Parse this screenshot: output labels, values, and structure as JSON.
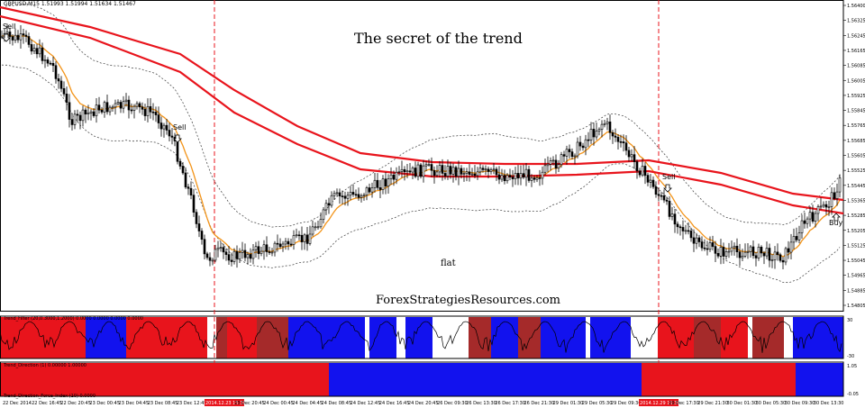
{
  "chart": {
    "symbol_info": "GBPUSD,M15  1.51993 1.51994 1.51634 1.51467",
    "title": "The secret of the  trend",
    "website": "ForexStrategiesResources.com",
    "flat_label": "flat",
    "signals": [
      {
        "label": "Sell",
        "kind": "sell"
      },
      {
        "label": "Sell",
        "kind": "sell"
      },
      {
        "label": "Sell",
        "kind": "sell"
      },
      {
        "label": "Buy",
        "kind": "buy"
      }
    ],
    "indicator1_label": "Trend_Filter (20,0.3000,1.2000) 0.0000 0.0000 0.0000 0.0000",
    "indicator2_label": "Trend_Direction (1) 0.00000 1.00000",
    "indicator3_label": "Trend_Direction_Force_Index (10) 0.0000",
    "colors": {
      "candle": "#000000",
      "ma_slow": "#e8141c",
      "ma_fast": "#f39419",
      "band": "#505050",
      "vline": "#e8141c",
      "bull": "#1212ee",
      "bear": "#e8141c",
      "neutral": "#a52a2a",
      "date_highlight": "#e8141c"
    },
    "price_axis": [
      "1.56400",
      "1.56325",
      "1.56245",
      "1.56165",
      "1.56085",
      "1.56005",
      "1.55925",
      "1.55845",
      "1.55765",
      "1.55685",
      "1.55605",
      "1.55525",
      "1.55445",
      "1.55365",
      "1.55285",
      "1.55205",
      "1.55125",
      "1.55045",
      "1.54965",
      "1.54885",
      "1.54805"
    ],
    "indicator1_axis": [
      "30",
      "-30"
    ],
    "indicator2_axis": [
      "1.05",
      "-0.05"
    ],
    "time_axis": [
      {
        "label": "22 Dec 2014"
      },
      {
        "label": "22 Dec 16:45"
      },
      {
        "label": "22 Dec 20:45"
      },
      {
        "label": "23 Dec 00:45"
      },
      {
        "label": "23 Dec 04:45"
      },
      {
        "label": "23 Dec 08:45"
      },
      {
        "label": "23 Dec 12:45"
      },
      {
        "label": "2014.12.23 15:30",
        "highlight": true
      },
      {
        "label": "23 Dec 20:45"
      },
      {
        "label": "24 Dec 00:45"
      },
      {
        "label": "24 Dec 04:45"
      },
      {
        "label": "24 Dec 08:45"
      },
      {
        "label": "24 Dec 12:45"
      },
      {
        "label": "24 Dec 16:45"
      },
      {
        "label": "24 Dec 20:45"
      },
      {
        "label": "26 Dec 09:30"
      },
      {
        "label": "26 Dec 13:30"
      },
      {
        "label": "26 Dec 17:30"
      },
      {
        "label": "26 Dec 21:30"
      },
      {
        "label": "29 Dec 01:30"
      },
      {
        "label": "29 Dec 05:30"
      },
      {
        "label": "29 Dec 09:30"
      },
      {
        "label": "2014.12.29 11:30",
        "highlight": true
      },
      {
        "label": "29 Dec 17:30"
      },
      {
        "label": "29 Dec 21:30"
      },
      {
        "label": "30 Dec 01:30"
      },
      {
        "label": "30 Dec 05:30"
      },
      {
        "label": "30 Dec 09:30"
      },
      {
        "label": "30 Dec 13:30"
      }
    ]
  }
}
